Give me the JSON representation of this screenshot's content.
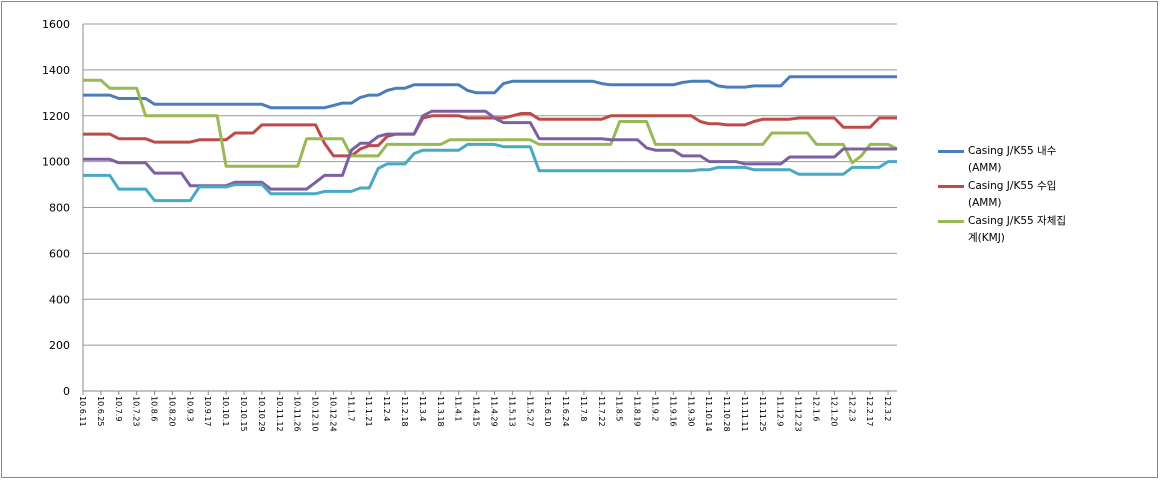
{
  "chart_data": {
    "type": "line",
    "categories": [
      "10.6.11",
      null,
      "10.6.25",
      null,
      "10.7.9",
      null,
      "10.7.23",
      null,
      "10.8.6",
      null,
      "10.8.20",
      null,
      "10.9.3",
      null,
      "10.9.17",
      null,
      "10.10.1",
      null,
      "10.10.15",
      null,
      "10.10.29",
      null,
      "10.11.12",
      null,
      "10.11.26",
      null,
      "10.12.10",
      null,
      "10.12.24",
      null,
      "11.1.7",
      null,
      "11.1.21",
      null,
      "11.2.4",
      null,
      "11.2.18",
      null,
      "11.3.4",
      null,
      "11.3.18",
      null,
      "11.4.1",
      null,
      "11.4.15",
      null,
      "11.4.29",
      null,
      "11.5.13",
      null,
      "11.5.27",
      null,
      "11.6.10",
      null,
      "11.6.24",
      null,
      "11.7.8",
      null,
      "11.7.22",
      null,
      "11.8.5",
      null,
      "11.8.19",
      null,
      "11.9.2",
      null,
      "11.9.16",
      null,
      "11.9.30",
      null,
      "11.10.14",
      null,
      "11.10.28",
      null,
      "11.11.11",
      null,
      "11.11.25",
      null,
      "11.12.9",
      null,
      "11.12.23",
      null,
      "12.1.6",
      null,
      "12.1.20",
      null,
      "12.2.3",
      null,
      "12.2.17",
      null,
      "12.3.2",
      null
    ],
    "ylim": [
      0,
      1600
    ],
    "yticks": [
      0,
      200,
      400,
      600,
      800,
      1000,
      1200,
      1400,
      1600
    ],
    "grid": true,
    "series": [
      {
        "name": "Casing J/K55 내수(AMM)",
        "color": "#4a7ebb",
        "values": [
          1290,
          1290,
          1290,
          1290,
          1275,
          1275,
          1275,
          1275,
          1250,
          1250,
          1250,
          1250,
          1250,
          1250,
          1250,
          1250,
          1250,
          1250,
          1250,
          1250,
          1250,
          1235,
          1235,
          1235,
          1235,
          1235,
          1235,
          1235,
          1245,
          1255,
          1255,
          1280,
          1290,
          1290,
          1310,
          1320,
          1320,
          1335,
          1335,
          1335,
          1335,
          1335,
          1335,
          1310,
          1300,
          1300,
          1300,
          1340,
          1350,
          1350,
          1350,
          1350,
          1350,
          1350,
          1350,
          1350,
          1350,
          1350,
          1340,
          1335,
          1335,
          1335,
          1335,
          1335,
          1335,
          1335,
          1335,
          1345,
          1350,
          1350,
          1350,
          1330,
          1325,
          1325,
          1325,
          1330,
          1330,
          1330,
          1330,
          1370,
          1370,
          1370,
          1370,
          1370,
          1370,
          1370,
          1370,
          1370,
          1370,
          1370,
          1370,
          1370
        ]
      },
      {
        "name": "Casing J/K55 수입(AMM)",
        "color": "#be4b48",
        "values": [
          1120,
          1120,
          1120,
          1120,
          1100,
          1100,
          1100,
          1100,
          1085,
          1085,
          1085,
          1085,
          1085,
          1095,
          1095,
          1095,
          1095,
          1125,
          1125,
          1125,
          1160,
          1160,
          1160,
          1160,
          1160,
          1160,
          1160,
          1080,
          1025,
          1025,
          1025,
          1055,
          1070,
          1070,
          1110,
          1120,
          1120,
          1120,
          1190,
          1200,
          1200,
          1200,
          1200,
          1190,
          1190,
          1190,
          1190,
          1190,
          1200,
          1210,
          1210,
          1185,
          1185,
          1185,
          1185,
          1185,
          1185,
          1185,
          1185,
          1200,
          1200,
          1200,
          1200,
          1200,
          1200,
          1200,
          1200,
          1200,
          1200,
          1175,
          1165,
          1165,
          1160,
          1160,
          1160,
          1175,
          1185,
          1185,
          1185,
          1185,
          1190,
          1190,
          1190,
          1190,
          1190,
          1150,
          1150,
          1150,
          1150,
          1190,
          1190,
          1190
        ]
      },
      {
        "name": "Casing J/K55 자체집계(KMJ)",
        "color": "#98b954",
        "values": [
          1355,
          1355,
          1355,
          1320,
          1320,
          1320,
          1320,
          1200,
          1200,
          1200,
          1200,
          1200,
          1200,
          1200,
          1200,
          1200,
          980,
          980,
          980,
          980,
          980,
          980,
          980,
          980,
          980,
          1100,
          1100,
          1100,
          1100,
          1100,
          1025,
          1025,
          1025,
          1025,
          1075,
          1075,
          1075,
          1075,
          1075,
          1075,
          1075,
          1095,
          1095,
          1095,
          1095,
          1095,
          1095,
          1095,
          1095,
          1095,
          1095,
          1075,
          1075,
          1075,
          1075,
          1075,
          1075,
          1075,
          1075,
          1075,
          1175,
          1175,
          1175,
          1175,
          1075,
          1075,
          1075,
          1075,
          1075,
          1075,
          1075,
          1075,
          1075,
          1075,
          1075,
          1075,
          1075,
          1125,
          1125,
          1125,
          1125,
          1125,
          1075,
          1075,
          1075,
          1075,
          995,
          1025,
          1075,
          1075,
          1075,
          1055
        ]
      },
      {
        "color": "#7d60a0",
        "values": [
          1010,
          1010,
          1010,
          1010,
          995,
          995,
          995,
          995,
          950,
          950,
          950,
          950,
          895,
          895,
          895,
          895,
          895,
          910,
          910,
          910,
          910,
          880,
          880,
          880,
          880,
          880,
          910,
          940,
          940,
          940,
          1050,
          1080,
          1080,
          1110,
          1120,
          1120,
          1120,
          1120,
          1200,
          1220,
          1220,
          1220,
          1220,
          1220,
          1220,
          1220,
          1190,
          1170,
          1170,
          1170,
          1170,
          1100,
          1100,
          1100,
          1100,
          1100,
          1100,
          1100,
          1100,
          1095,
          1095,
          1095,
          1095,
          1060,
          1050,
          1050,
          1050,
          1025,
          1025,
          1025,
          1000,
          1000,
          1000,
          1000,
          990,
          990,
          990,
          990,
          990,
          1020,
          1020,
          1020,
          1020,
          1020,
          1020,
          1055,
          1055,
          1055,
          1055,
          1055,
          1055,
          1055
        ]
      },
      {
        "color": "#46aac5",
        "values": [
          940,
          940,
          940,
          940,
          880,
          880,
          880,
          880,
          830,
          830,
          830,
          830,
          830,
          890,
          890,
          890,
          890,
          900,
          900,
          900,
          900,
          860,
          860,
          860,
          860,
          860,
          860,
          870,
          870,
          870,
          870,
          885,
          885,
          970,
          990,
          990,
          990,
          1035,
          1050,
          1050,
          1050,
          1050,
          1050,
          1075,
          1075,
          1075,
          1075,
          1065,
          1065,
          1065,
          1065,
          960,
          960,
          960,
          960,
          960,
          960,
          960,
          960,
          960,
          960,
          960,
          960,
          960,
          960,
          960,
          960,
          960,
          960,
          965,
          965,
          975,
          975,
          975,
          975,
          965,
          965,
          965,
          965,
          965,
          945,
          945,
          945,
          945,
          945,
          945,
          975,
          975,
          975,
          975,
          1000,
          1000
        ]
      }
    ]
  }
}
